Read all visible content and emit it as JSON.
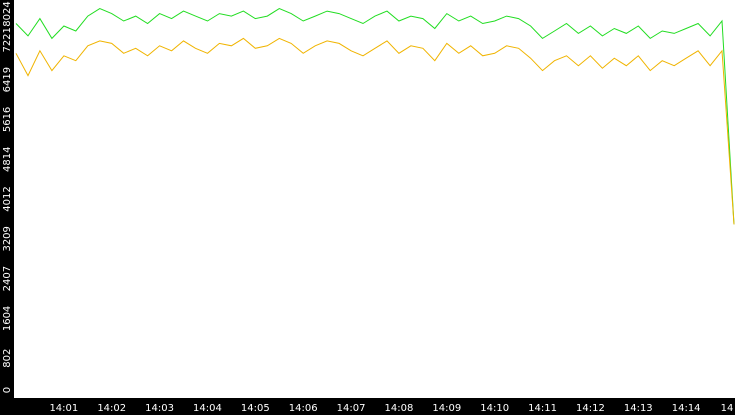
{
  "chart_data": {
    "type": "line",
    "categories": [
      null,
      null,
      null,
      null,
      "14:01",
      null,
      null,
      null,
      "14:02",
      null,
      null,
      null,
      "14:03",
      null,
      null,
      null,
      "14:04",
      null,
      null,
      null,
      "14:05",
      null,
      null,
      null,
      "14:06",
      null,
      null,
      null,
      "14:07",
      null,
      null,
      null,
      "14:08",
      null,
      null,
      null,
      "14:09",
      null,
      null,
      null,
      "14:10",
      null,
      null,
      null,
      "14:11",
      null,
      null,
      null,
      "14:12",
      null,
      null,
      null,
      "14:13",
      null,
      null,
      null,
      "14:14",
      null,
      null,
      null,
      "14"
    ],
    "series": [
      {
        "color": "#22dd22",
        "values": [
          7550,
          7300,
          7650,
          7250,
          7500,
          7400,
          7700,
          7850,
          7750,
          7600,
          7700,
          7550,
          7750,
          7650,
          7800,
          7700,
          7600,
          7750,
          7700,
          7800,
          7650,
          7700,
          7850,
          7750,
          7600,
          7700,
          7800,
          7750,
          7650,
          7550,
          7700,
          7800,
          7600,
          7700,
          7650,
          7450,
          7750,
          7600,
          7700,
          7550,
          7600,
          7700,
          7650,
          7500,
          7250,
          7400,
          7550,
          7350,
          7500,
          7300,
          7450,
          7350,
          7500,
          7250,
          7400,
          7350,
          7450,
          7550,
          7300,
          7600,
          3500
        ]
      },
      {
        "color": "#f0b400",
        "values": [
          6950,
          6500,
          7000,
          6600,
          6900,
          6800,
          7100,
          7200,
          7150,
          6950,
          7050,
          6900,
          7100,
          7000,
          7200,
          7050,
          6950,
          7150,
          7100,
          7250,
          7050,
          7100,
          7250,
          7150,
          6950,
          7100,
          7200,
          7150,
          7000,
          6900,
          7050,
          7200,
          6950,
          7100,
          7050,
          6800,
          7150,
          6950,
          7100,
          6900,
          6950,
          7100,
          7050,
          6850,
          6600,
          6800,
          6900,
          6700,
          6900,
          6650,
          6850,
          6700,
          6900,
          6600,
          6800,
          6700,
          6850,
          7000,
          6700,
          7000,
          3500
        ]
      }
    ],
    "ylim": [
      0,
      8024
    ],
    "yticks": [
      0,
      802,
      1604,
      2407,
      3209,
      4012,
      4814,
      5616,
      6419,
      7221,
      8024
    ]
  }
}
